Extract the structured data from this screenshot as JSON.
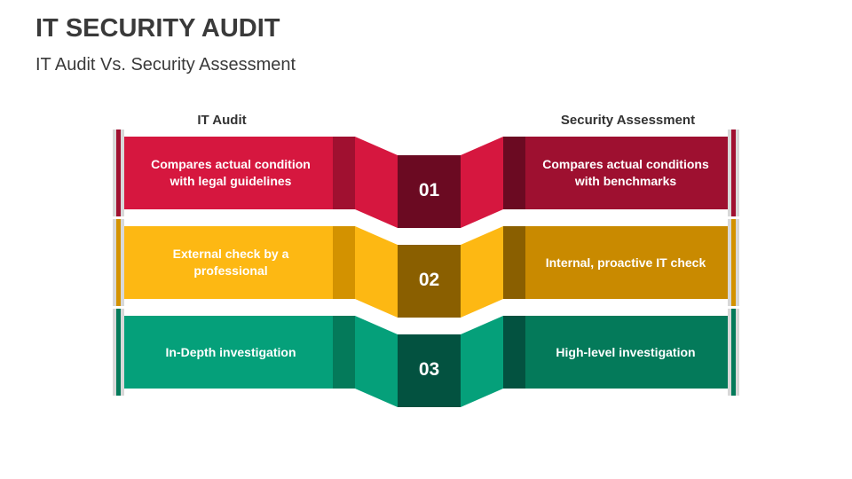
{
  "title": "IT SECURITY AUDIT",
  "subtitle": "IT Audit Vs. Security Assessment",
  "headers": {
    "left": "IT Audit",
    "right": "Security Assessment"
  },
  "rows": [
    {
      "number": "01",
      "left": "Compares actual condition with legal guidelines",
      "right": "Compares actual conditions with benchmarks",
      "colors": {
        "main": "#D6173F",
        "strip": "#A01030",
        "center": "#6B0A22",
        "right": "#9E1030",
        "right_strip": "#6B0A22"
      }
    },
    {
      "number": "02",
      "left": "External check by a professional",
      "right": "Internal, proactive IT check",
      "colors": {
        "main": "#FDB813",
        "strip": "#D39200",
        "center": "#8A5F00",
        "right": "#C98A00",
        "right_strip": "#8A5F00"
      }
    },
    {
      "number": "03",
      "left": "In-Depth investigation",
      "right": "High-level investigation",
      "colors": {
        "main": "#05A07A",
        "strip": "#047A5A",
        "center": "#035240",
        "right": "#047A5A",
        "right_strip": "#035240"
      }
    }
  ]
}
